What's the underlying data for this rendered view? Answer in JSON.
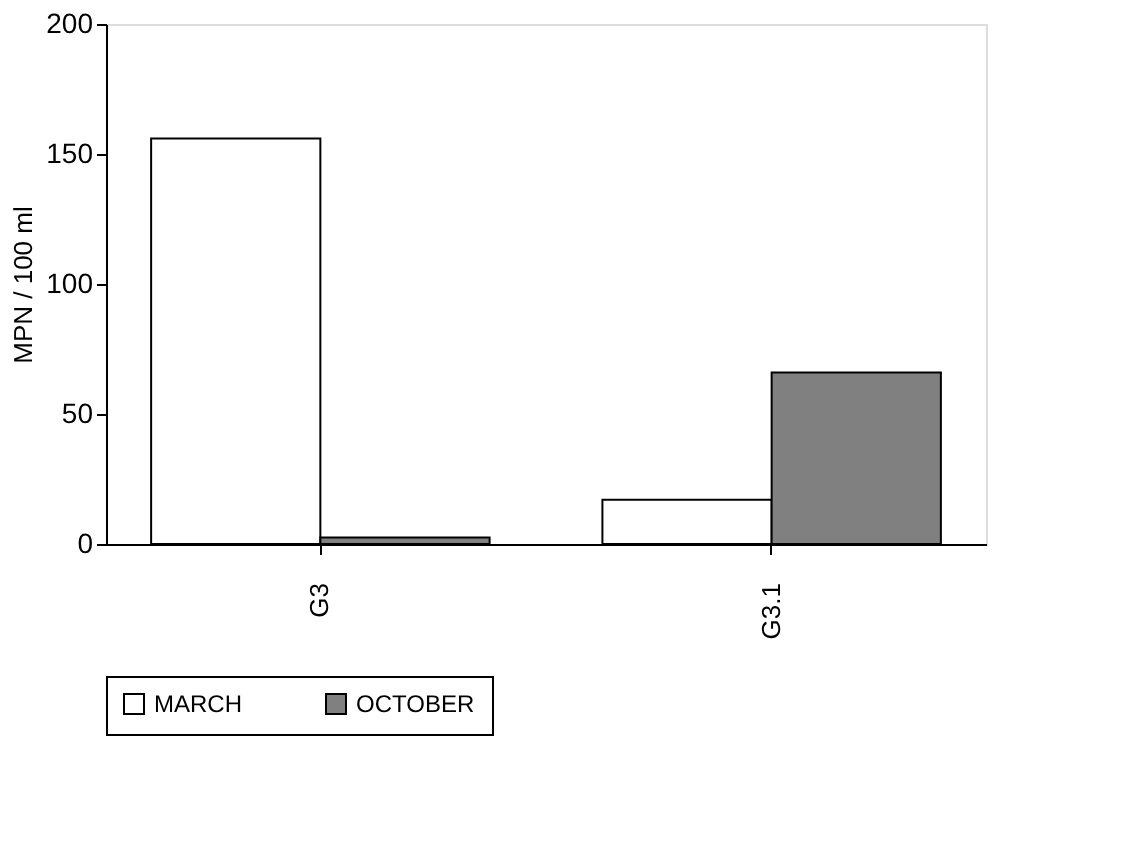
{
  "chart_data": {
    "type": "bar",
    "ylabel": "MPN / 100 ml",
    "categories": [
      "G3",
      "G3.1"
    ],
    "series": [
      {
        "name": "MARCH",
        "color": "#ffffff",
        "values": [
          156,
          17
        ]
      },
      {
        "name": "OCTOBER",
        "color": "#808080",
        "values": [
          2.5,
          66
        ]
      }
    ],
    "ylim": [
      0,
      200
    ],
    "yticks": [
      0,
      50,
      100,
      150,
      200
    ],
    "grid": false,
    "legend": "bottom"
  }
}
